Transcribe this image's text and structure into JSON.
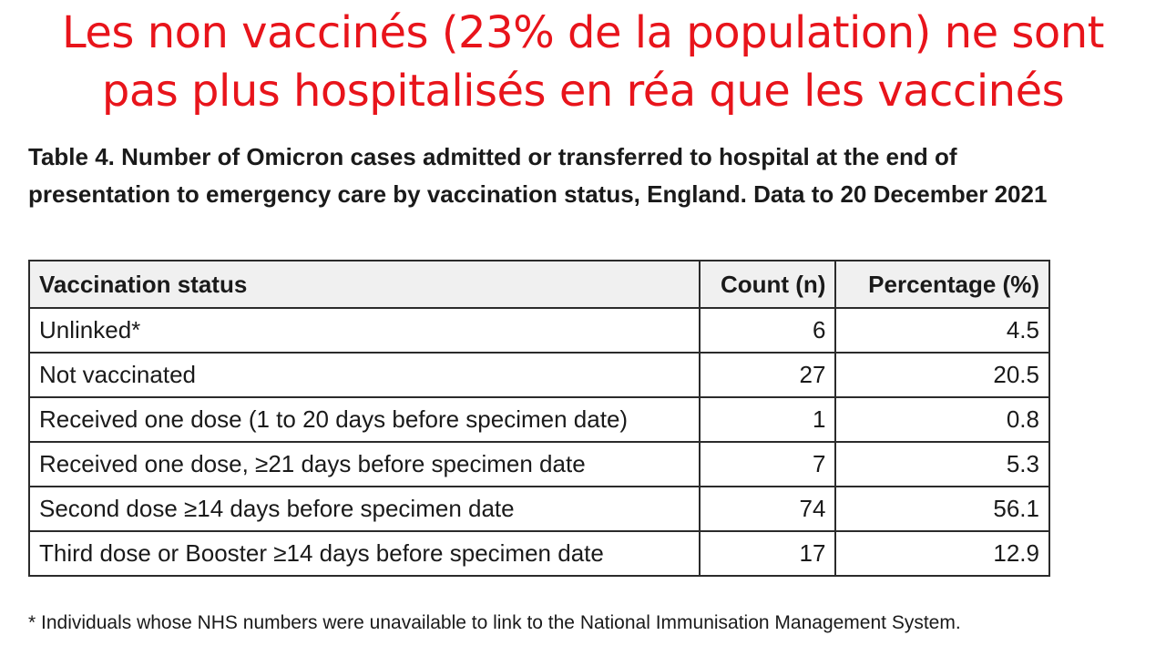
{
  "slide": {
    "headline_lines": [
      "Les non vaccinés (23% de la population) ne sont",
      "pas plus hospitalisés en réa que les vaccinés"
    ],
    "table_caption": "Table 4. Number of Omicron cases admitted or transferred to hospital at the end of presentation to emergency care by vaccination status, England. Data to 20 December 2021",
    "table": {
      "headers": [
        "Vaccination status",
        "Count (n)",
        "Percentage (%)"
      ],
      "rows": [
        {
          "status": "Unlinked*",
          "count": "6",
          "percentage": "4.5"
        },
        {
          "status": "Not vaccinated",
          "count": "27",
          "percentage": "20.5"
        },
        {
          "status": "Received one dose (1 to 20 days before specimen date)",
          "count": "1",
          "percentage": "0.8"
        },
        {
          "status": "Received one dose, ≥21 days before specimen date",
          "count": "7",
          "percentage": "5.3"
        },
        {
          "status": "Second dose ≥14 days before specimen date",
          "count": "74",
          "percentage": "56.1"
        },
        {
          "status": "Third dose or Booster ≥14 days before specimen date",
          "count": "17",
          "percentage": "12.9"
        }
      ]
    },
    "footnote": "* Individuals whose NHS numbers were unavailable to link to the National Immunisation Management System.",
    "colors": {
      "headline": "#e8141b",
      "text": "#1a1a1a",
      "border": "#2b2b2b",
      "header_bg": "#f0f0f0"
    }
  }
}
